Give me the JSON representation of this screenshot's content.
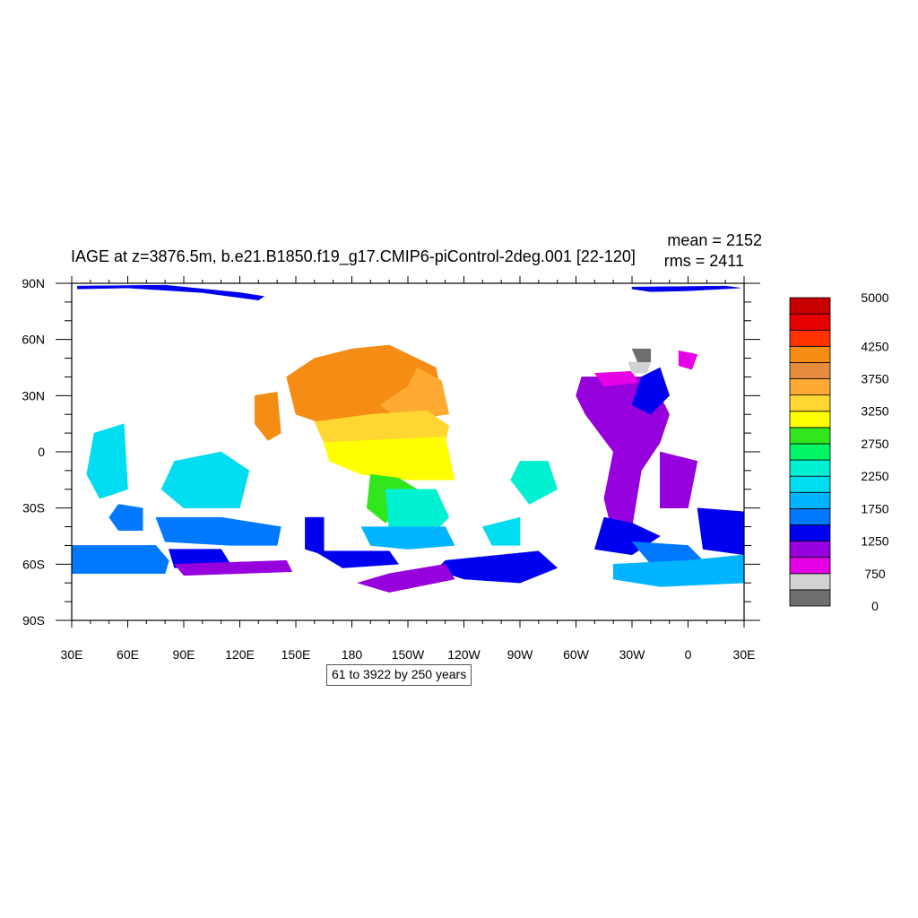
{
  "title": "IAGE at z=3876.5m, b.e21.B1850.f19_g17.CMIP6-piControl-2deg.001 [22-120]",
  "stats": {
    "mean": "mean = 2152",
    "rms": "rms = 2411"
  },
  "info_box": "61 to 3922 by 250 years",
  "axes": {
    "lon_labels": [
      "30E",
      "60E",
      "90E",
      "120E",
      "150E",
      "180",
      "150W",
      "120W",
      "90W",
      "60W",
      "30W",
      "0",
      "30E"
    ],
    "lat_labels": [
      "90N",
      "60N",
      "30N",
      "0",
      "30S",
      "60S",
      "90S"
    ]
  },
  "colorbar": {
    "colors": [
      "#6e6e6e",
      "#d2d2d2",
      "#e600e6",
      "#9600dc",
      "#0000f0",
      "#0078ff",
      "#00b4ff",
      "#00dcf0",
      "#00f0d2",
      "#00f564",
      "#32e61e",
      "#ffff00",
      "#ffd732",
      "#ffaa32",
      "#e68c3c",
      "#f58c14",
      "#ff3200",
      "#e60000",
      "#c80000"
    ],
    "labels": [
      {
        "text": "5000",
        "boundary": 19
      },
      {
        "text": "4250",
        "boundary": 16
      },
      {
        "text": "3750",
        "boundary": 14
      },
      {
        "text": "3250",
        "boundary": 12
      },
      {
        "text": "2750",
        "boundary": 10
      },
      {
        "text": "2250",
        "boundary": 8
      },
      {
        "text": "1750",
        "boundary": 6
      },
      {
        "text": "1250",
        "boundary": 4
      },
      {
        "text": "750",
        "boundary": 2
      },
      {
        "text": "0",
        "boundary": 0
      }
    ]
  },
  "chart_data": {
    "type": "heatmap",
    "title": "IAGE at z=3876.5m, b.e21.B1850.f19_g17.CMIP6-piControl-2deg.001 [22-120]",
    "x_range": [
      30,
      390
    ],
    "y_range": [
      -90,
      90
    ],
    "value_range": [
      0,
      5000
    ],
    "regions": [
      {
        "name": "arctic-strip-west",
        "level": 4,
        "points": [
          [
            33,
            88.5
          ],
          [
            80,
            89
          ],
          [
            120,
            85
          ],
          [
            133,
            83
          ],
          [
            130,
            81
          ],
          [
            100,
            85
          ],
          [
            60,
            87.5
          ],
          [
            33,
            87
          ]
        ]
      },
      {
        "name": "arctic-strip-east",
        "level": 4,
        "points": [
          [
            330,
            88
          ],
          [
            380,
            88.5
          ],
          [
            388,
            87.5
          ],
          [
            360,
            86
          ],
          [
            340,
            85.5
          ],
          [
            330,
            87
          ]
        ]
      },
      {
        "name": "n-pacific-orange",
        "level": 15,
        "points": [
          [
            145,
            40
          ],
          [
            160,
            50
          ],
          [
            180,
            55
          ],
          [
            200,
            57
          ],
          [
            225,
            45
          ],
          [
            230,
            20
          ],
          [
            200,
            15
          ],
          [
            165,
            15
          ],
          [
            150,
            20
          ]
        ]
      },
      {
        "name": "n-pacific-lightorange",
        "level": 13,
        "points": [
          [
            215,
            45
          ],
          [
            228,
            38
          ],
          [
            232,
            20
          ],
          [
            205,
            18
          ],
          [
            195,
            25
          ],
          [
            210,
            35
          ]
        ]
      },
      {
        "name": "n-pacific-gold",
        "level": 12,
        "points": [
          [
            160,
            16
          ],
          [
            190,
            20
          ],
          [
            220,
            22
          ],
          [
            232,
            14
          ],
          [
            230,
            5
          ],
          [
            190,
            5
          ],
          [
            165,
            5
          ]
        ]
      },
      {
        "name": "w-pacific-orange",
        "level": 15,
        "points": [
          [
            128,
            30
          ],
          [
            140,
            32
          ],
          [
            142,
            10
          ],
          [
            135,
            6
          ],
          [
            128,
            15
          ]
        ]
      },
      {
        "name": "tropical-pacific-yellow",
        "level": 11,
        "points": [
          [
            165,
            5
          ],
          [
            230,
            8
          ],
          [
            235,
            -15
          ],
          [
            210,
            -15
          ],
          [
            185,
            -12
          ],
          [
            168,
            -5
          ]
        ]
      },
      {
        "name": "s-pacific-green",
        "level": 10,
        "points": [
          [
            190,
            -12
          ],
          [
            205,
            -14
          ],
          [
            215,
            -20
          ],
          [
            210,
            -28
          ],
          [
            198,
            -38
          ],
          [
            188,
            -30
          ]
        ]
      },
      {
        "name": "s-pacific-cyan",
        "level": 8,
        "points": [
          [
            198,
            -20
          ],
          [
            225,
            -20
          ],
          [
            232,
            -35
          ],
          [
            225,
            -42
          ],
          [
            200,
            -42
          ]
        ]
      },
      {
        "name": "s-pacific-blue",
        "level": 6,
        "points": [
          [
            185,
            -40
          ],
          [
            230,
            -40
          ],
          [
            235,
            -50
          ],
          [
            210,
            -52
          ],
          [
            190,
            -50
          ]
        ]
      },
      {
        "name": "se-pacific-deepblue",
        "level": 4,
        "points": [
          [
            230,
            -58
          ],
          [
            280,
            -53
          ],
          [
            290,
            -62
          ],
          [
            270,
            -70
          ],
          [
            240,
            -68
          ],
          [
            225,
            -63
          ]
        ]
      },
      {
        "name": "se-pacific-purple",
        "level": 3,
        "points": [
          [
            183,
            -70
          ],
          [
            200,
            -65
          ],
          [
            230,
            -60
          ],
          [
            235,
            -68
          ],
          [
            200,
            -75
          ]
        ]
      },
      {
        "name": "indian-lightblue",
        "level": 7,
        "points": [
          [
            85,
            -5
          ],
          [
            110,
            0
          ],
          [
            125,
            -10
          ],
          [
            120,
            -30
          ],
          [
            90,
            -30
          ],
          [
            78,
            -20
          ]
        ]
      },
      {
        "name": "w-indian-lightblue",
        "level": 7,
        "points": [
          [
            42,
            10
          ],
          [
            58,
            15
          ],
          [
            60,
            -20
          ],
          [
            45,
            -25
          ],
          [
            38,
            -12
          ]
        ]
      },
      {
        "name": "madagascar-blue",
        "level": 5,
        "points": [
          [
            55,
            -28
          ],
          [
            68,
            -30
          ],
          [
            68,
            -42
          ],
          [
            55,
            -42
          ],
          [
            50,
            -35
          ]
        ]
      },
      {
        "name": "s-indian-blue",
        "level": 5,
        "points": [
          [
            75,
            -35
          ],
          [
            110,
            -35
          ],
          [
            142,
            -40
          ],
          [
            140,
            -50
          ],
          [
            115,
            -50
          ],
          [
            80,
            -48
          ]
        ]
      },
      {
        "name": "s-ocean-west-blue",
        "level": 5,
        "points": [
          [
            30,
            -50
          ],
          [
            75,
            -50
          ],
          [
            82,
            -58
          ],
          [
            80,
            -65
          ],
          [
            30,
            -65
          ]
        ]
      },
      {
        "name": "s-ocean-west-deepblue",
        "level": 4,
        "points": [
          [
            82,
            -52
          ],
          [
            110,
            -52
          ],
          [
            115,
            -60
          ],
          [
            85,
            -62
          ]
        ]
      },
      {
        "name": "s-ocean-west-purple",
        "level": 3,
        "points": [
          [
            85,
            -60
          ],
          [
            145,
            -58
          ],
          [
            148,
            -64
          ],
          [
            90,
            -66
          ]
        ]
      },
      {
        "name": "tasman-deepblue",
        "level": 4,
        "points": [
          [
            155,
            -35
          ],
          [
            165,
            -35
          ],
          [
            165,
            -55
          ],
          [
            155,
            -52
          ]
        ]
      },
      {
        "name": "s-ocean-180-deepblue",
        "level": 4,
        "points": [
          [
            160,
            -53
          ],
          [
            200,
            -53
          ],
          [
            205,
            -60
          ],
          [
            175,
            -62
          ]
        ]
      },
      {
        "name": "s-atlantic-cyan",
        "level": 8,
        "points": [
          [
            270,
            -5
          ],
          [
            285,
            -5
          ],
          [
            290,
            -20
          ],
          [
            275,
            -28
          ],
          [
            265,
            -15
          ]
        ]
      },
      {
        "name": "s-atlantic-lightblue",
        "level": 7,
        "points": [
          [
            250,
            -40
          ],
          [
            270,
            -35
          ],
          [
            270,
            -50
          ],
          [
            255,
            -50
          ]
        ]
      },
      {
        "name": "n-atlantic-purple",
        "level": 3,
        "points": [
          [
            303,
            40
          ],
          [
            340,
            40
          ],
          [
            350,
            20
          ],
          [
            345,
            5
          ],
          [
            335,
            -10
          ],
          [
            330,
            -40
          ],
          [
            320,
            -45
          ],
          [
            315,
            -25
          ],
          [
            320,
            0
          ],
          [
            305,
            20
          ],
          [
            300,
            30
          ]
        ]
      },
      {
        "name": "n-atlantic-blue",
        "level": 4,
        "points": [
          [
            335,
            40
          ],
          [
            345,
            45
          ],
          [
            350,
            30
          ],
          [
            340,
            20
          ],
          [
            330,
            25
          ]
        ]
      },
      {
        "name": "e-atlantic-purple",
        "level": 3,
        "points": [
          [
            345,
            0
          ],
          [
            365,
            -5
          ],
          [
            360,
            -30
          ],
          [
            345,
            -30
          ]
        ]
      },
      {
        "name": "s-atlantic-deepblue",
        "level": 4,
        "points": [
          [
            315,
            -35
          ],
          [
            330,
            -38
          ],
          [
            345,
            -45
          ],
          [
            330,
            -55
          ],
          [
            310,
            -52
          ]
        ]
      },
      {
        "name": "s-atlantic-blue",
        "level": 5,
        "points": [
          [
            330,
            -48
          ],
          [
            360,
            -50
          ],
          [
            370,
            -60
          ],
          [
            340,
            -60
          ]
        ]
      },
      {
        "name": "weddell-lightblue",
        "level": 6,
        "points": [
          [
            320,
            -60
          ],
          [
            360,
            -58
          ],
          [
            390,
            -55
          ],
          [
            390,
            -70
          ],
          [
            345,
            -72
          ],
          [
            320,
            -68
          ]
        ]
      },
      {
        "name": "se-atlantic-deepblue",
        "level": 4,
        "points": [
          [
            365,
            -30
          ],
          [
            390,
            -32
          ],
          [
            390,
            -55
          ],
          [
            368,
            -52
          ]
        ]
      },
      {
        "name": "labrador-magenta",
        "level": 2,
        "points": [
          [
            310,
            42
          ],
          [
            330,
            43
          ],
          [
            333,
            37
          ],
          [
            315,
            35
          ]
        ]
      },
      {
        "name": "labrador-lightgrey",
        "level": 1,
        "points": [
          [
            328,
            48
          ],
          [
            340,
            48
          ],
          [
            338,
            42
          ],
          [
            330,
            42
          ]
        ]
      },
      {
        "name": "baffin-darkgrey",
        "level": 0,
        "points": [
          [
            330,
            55
          ],
          [
            340,
            55
          ],
          [
            340,
            48
          ],
          [
            333,
            48
          ]
        ]
      },
      {
        "name": "norwegian-magenta",
        "level": 2,
        "points": [
          [
            355,
            54
          ],
          [
            365,
            52
          ],
          [
            362,
            44
          ],
          [
            355,
            46
          ]
        ]
      }
    ]
  }
}
